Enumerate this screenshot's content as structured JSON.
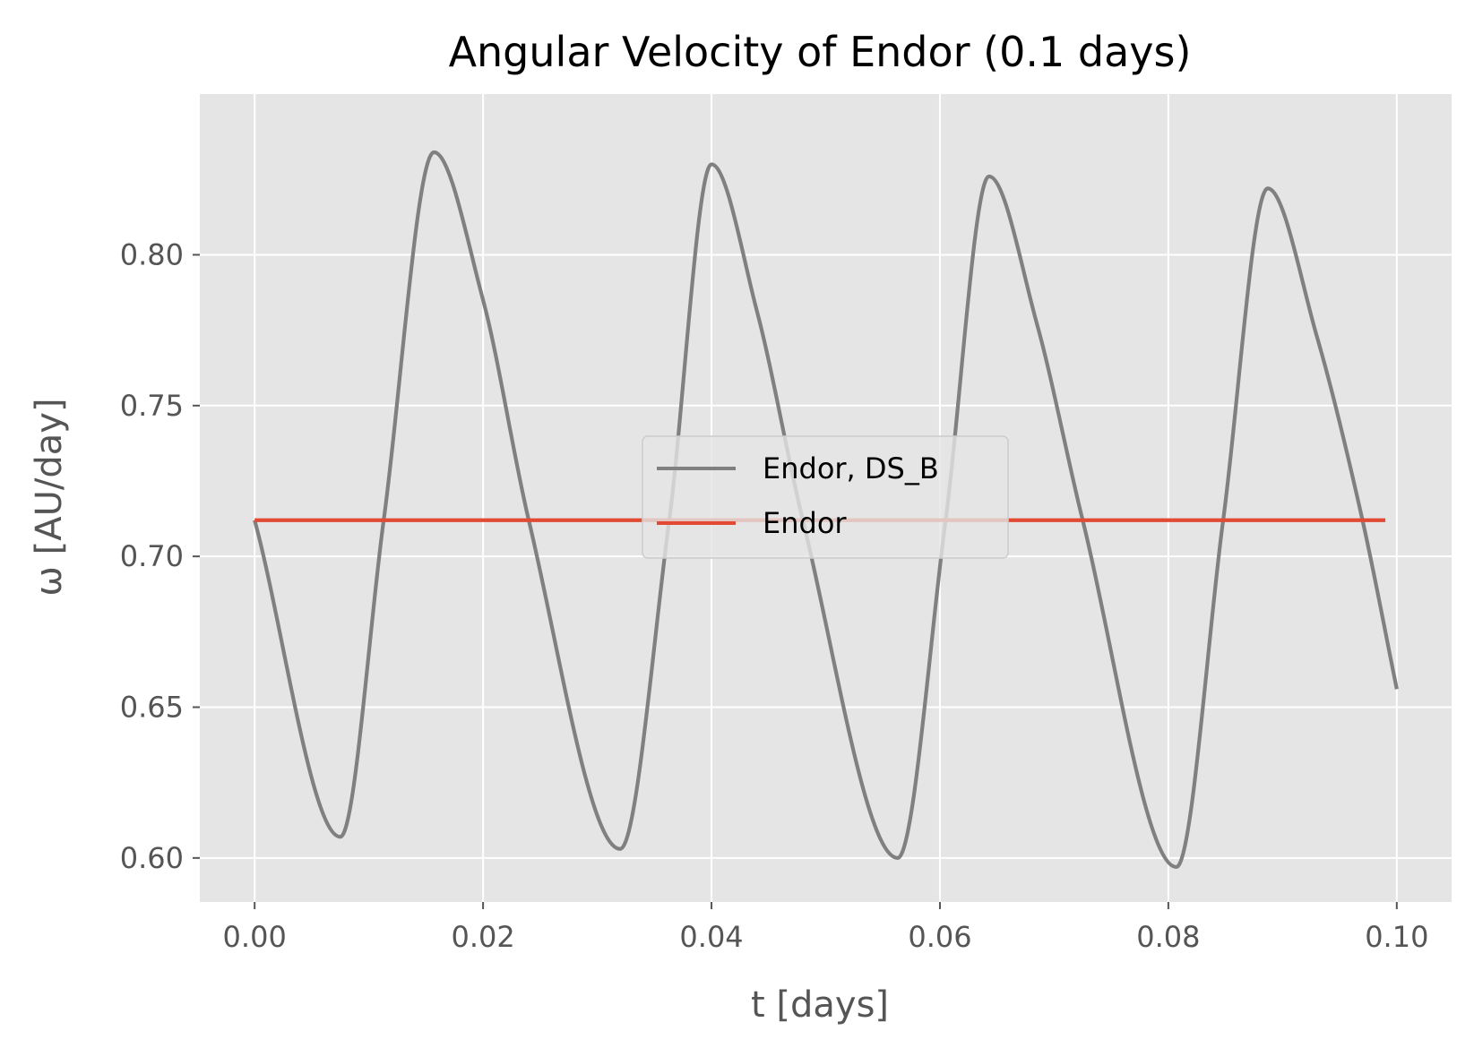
{
  "chart_data": {
    "type": "line",
    "title": "Angular Velocity of Endor (0.1 days)",
    "xlabel": "t [days]",
    "ylabel": "ω [AU/day]",
    "xlim": [
      -0.0048,
      0.1048
    ],
    "ylim": [
      0.5854,
      0.8533
    ],
    "xticks": [
      0.0,
      0.02,
      0.04,
      0.06,
      0.08,
      0.1
    ],
    "xtick_labels": [
      "0.00",
      "0.02",
      "0.04",
      "0.06",
      "0.08",
      "0.10"
    ],
    "yticks": [
      0.6,
      0.65,
      0.7,
      0.75,
      0.8
    ],
    "ytick_labels": [
      "0.60",
      "0.65",
      "0.70",
      "0.75",
      "0.80"
    ],
    "grid": true,
    "style": "ggplot",
    "legend": {
      "position": "center"
    },
    "series": [
      {
        "name": "Endor, DS_B",
        "color": "#808080",
        "x": [
          0.0,
          0.0075,
          0.0113,
          0.0157,
          0.02,
          0.024,
          0.032,
          0.0363,
          0.04,
          0.044,
          0.048,
          0.0563,
          0.0605,
          0.0643,
          0.0685,
          0.0725,
          0.0807,
          0.0848,
          0.0887,
          0.093,
          0.097,
          0.1
        ],
        "y": [
          0.712,
          0.607,
          0.712,
          0.834,
          0.785,
          0.712,
          0.603,
          0.712,
          0.83,
          0.781,
          0.712,
          0.6,
          0.712,
          0.826,
          0.777,
          0.712,
          0.597,
          0.712,
          0.822,
          0.773,
          0.712,
          0.656
        ]
      },
      {
        "name": "Endor",
        "color": "#e24a33",
        "x": [
          0.0,
          0.099
        ],
        "y": [
          0.712,
          0.712
        ]
      }
    ]
  }
}
